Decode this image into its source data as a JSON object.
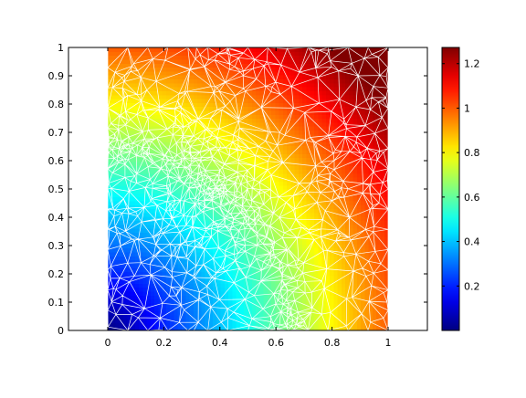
{
  "chart_data": {
    "type": "heatmap",
    "title": "",
    "xlabel": "",
    "ylabel": "",
    "xlim": [
      -0.14,
      1.14
    ],
    "ylim": [
      0,
      1
    ],
    "xticks": [
      "0",
      "0.2",
      "0.4",
      "0.6",
      "0.8",
      "1"
    ],
    "yticks": [
      "0",
      "0.1",
      "0.2",
      "0.3",
      "0.4",
      "0.5",
      "0.6",
      "0.7",
      "0.8",
      "0.9",
      "1"
    ],
    "x_tick_values": [
      0,
      0.2,
      0.4,
      0.6,
      0.8,
      1
    ],
    "y_tick_values": [
      0,
      0.1,
      0.2,
      0.3,
      0.4,
      0.5,
      0.6,
      0.7,
      0.8,
      0.9,
      1
    ],
    "field_domain": {
      "x": [
        0,
        1
      ],
      "y": [
        0,
        1
      ]
    },
    "field_description": "distance from origin, sqrt(x^2+y^2)",
    "field_range": [
      0,
      1.2728
    ],
    "mesh": {
      "type": "triangular",
      "color": "#ffffff",
      "refinement_curve": {
        "shape": "circle-arc",
        "radius": 0.65,
        "center": [
          0,
          0
        ]
      },
      "refinement_point": [
        0.33,
        0.5
      ]
    },
    "colorbar": {
      "colormap": "jet",
      "range": [
        0,
        1.2728
      ],
      "ticks": [
        "0.2",
        "0.4",
        "0.6",
        "0.8",
        "1",
        "1.2"
      ],
      "tick_values": [
        0.2,
        0.4,
        0.6,
        0.8,
        1.0,
        1.2
      ],
      "position": "right"
    },
    "grid": false,
    "legend": "none"
  }
}
